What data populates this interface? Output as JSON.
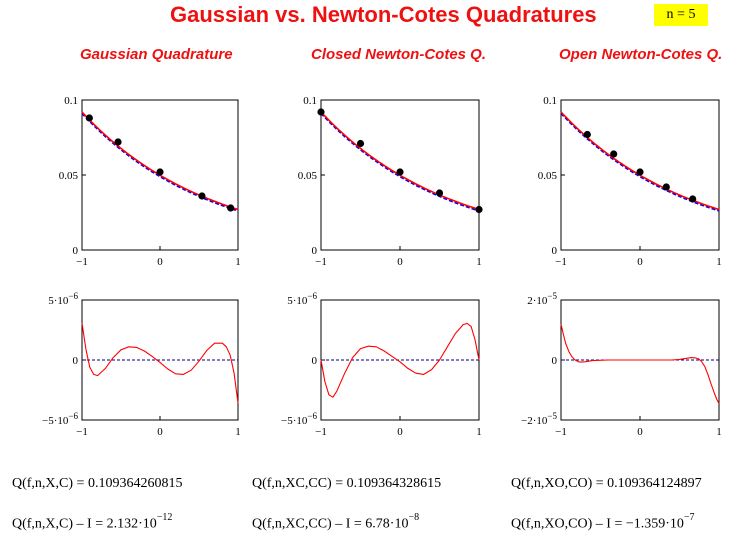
{
  "title": "Gaussian vs. Newton-Cotes Quadratures",
  "n_label": "n = 5",
  "columns": [
    {
      "subtitle": "Gaussian Quadrature",
      "value_line": {
        "lhs": "Q(f,n,X,C)",
        "rhs": "= 0.109364260815"
      },
      "error_line": {
        "lhs": "Q(f,n,X,C) – I",
        "mant": "= 2.132·10",
        "exp": "−12"
      }
    },
    {
      "subtitle": "Closed Newton-Cotes Q.",
      "value_line": {
        "lhs": "Q(f,n,XC,CC)",
        "rhs": "= 0.109364328615"
      },
      "error_line": {
        "lhs": "Q(f,n,XC,CC) – I",
        "mant": "= 6.78·10",
        "exp": "−8"
      }
    },
    {
      "subtitle": "Open Newton-Cotes Q.",
      "value_line": {
        "lhs": "Q(f,n,XO,CO)",
        "rhs": "= 0.109364124897"
      },
      "error_line": {
        "lhs": "Q(f,n,XO,CO) – I",
        "mant": "= −1.359·10",
        "exp": "−7"
      }
    }
  ],
  "colors": {
    "title": "#ee1111",
    "curve_red": "#ff0000",
    "curve_blue": "#0000ff",
    "nodes": "#000000",
    "zero_line": "#000080"
  },
  "chart_data": [
    {
      "type": "line",
      "panel": "gauss-function",
      "xlim": [
        -1,
        1
      ],
      "ylim": [
        0,
        0.1
      ],
      "xticks": [
        -1,
        0,
        1
      ],
      "yticks": [
        0,
        0.05,
        0.1
      ],
      "xtick_labels": [
        "−1",
        "0",
        "1"
      ],
      "ytick_labels": [
        "0",
        "0.05",
        "0.1"
      ],
      "function": {
        "kind": "exp_fit",
        "y_at_minus1": 0.092,
        "y_at_plus1": 0.027
      },
      "nodes": {
        "x": [
          -0.906,
          -0.538,
          0,
          0.538,
          0.906
        ],
        "y": [
          0.088,
          0.072,
          0.052,
          0.036,
          0.028
        ]
      }
    },
    {
      "type": "line",
      "panel": "closed-nc-function",
      "xlim": [
        -1,
        1
      ],
      "ylim": [
        0,
        0.1
      ],
      "xticks": [
        -1,
        0,
        1
      ],
      "yticks": [
        0,
        0.05,
        0.1
      ],
      "xtick_labels": [
        "−1",
        "0",
        "1"
      ],
      "ytick_labels": [
        "0",
        "0.05",
        "0.1"
      ],
      "function": {
        "kind": "exp_fit",
        "y_at_minus1": 0.092,
        "y_at_plus1": 0.027
      },
      "nodes": {
        "x": [
          -1,
          -0.5,
          0,
          0.5,
          1
        ],
        "y": [
          0.092,
          0.071,
          0.052,
          0.038,
          0.027
        ]
      }
    },
    {
      "type": "line",
      "panel": "open-nc-function",
      "xlim": [
        -1,
        1
      ],
      "ylim": [
        0,
        0.1
      ],
      "xticks": [
        -1,
        0,
        1
      ],
      "yticks": [
        0,
        0.05,
        0.1
      ],
      "xtick_labels": [
        "−1",
        "0",
        "1"
      ],
      "ytick_labels": [
        "0",
        "0.05",
        "0.1"
      ],
      "function": {
        "kind": "exp_fit",
        "y_at_minus1": 0.092,
        "y_at_plus1": 0.027
      },
      "nodes": {
        "x": [
          -0.667,
          -0.333,
          0,
          0.333,
          0.667
        ],
        "y": [
          0.077,
          0.064,
          0.052,
          0.042,
          0.034
        ]
      }
    },
    {
      "type": "line",
      "panel": "gauss-error",
      "xlim": [
        -1,
        1
      ],
      "ylim": [
        -5e-06,
        5e-06
      ],
      "xticks": [
        -1,
        0,
        1
      ],
      "xtick_labels": [
        "−1",
        "0",
        "1"
      ],
      "yticks": [
        -5e-06,
        0,
        5e-06
      ],
      "ytick_labels": [
        {
          "m": "−5·10",
          "e": "−6"
        },
        {
          "m": "0",
          "e": ""
        },
        {
          "m": "5·10",
          "e": "−6"
        }
      ],
      "zero_line": true,
      "error_curve": {
        "x": [
          -1,
          -0.95,
          -0.9,
          -0.85,
          -0.8,
          -0.7,
          -0.6,
          -0.5,
          -0.4,
          -0.3,
          -0.2,
          -0.1,
          0,
          0.1,
          0.2,
          0.3,
          0.4,
          0.5,
          0.6,
          0.7,
          0.8,
          0.85,
          0.9,
          0.95,
          1
        ],
        "y": [
          3.1e-06,
          9e-07,
          -6e-07,
          -1.2e-06,
          -1.3e-06,
          -7e-07,
          2e-07,
          8.5e-07,
          1.1e-06,
          1.05e-06,
          7.5e-07,
          3e-07,
          -2e-07,
          -7.5e-07,
          -1.15e-06,
          -1.2e-06,
          -8.5e-07,
          -1e-07,
          8e-07,
          1.4e-06,
          1.4e-06,
          1.1e-06,
          4e-07,
          -1.1e-06,
          -3.6e-06
        ]
      }
    },
    {
      "type": "line",
      "panel": "closed-nc-error",
      "xlim": [
        -1,
        1
      ],
      "ylim": [
        -5e-06,
        5e-06
      ],
      "xticks": [
        -1,
        0,
        1
      ],
      "xtick_labels": [
        "−1",
        "0",
        "1"
      ],
      "yticks": [
        -5e-06,
        0,
        5e-06
      ],
      "ytick_labels": [
        {
          "m": "−5·10",
          "e": "−6"
        },
        {
          "m": "0",
          "e": ""
        },
        {
          "m": "5·10",
          "e": "−6"
        }
      ],
      "zero_line": true,
      "error_curve": {
        "x": [
          -1,
          -0.95,
          -0.9,
          -0.85,
          -0.8,
          -0.7,
          -0.6,
          -0.5,
          -0.4,
          -0.3,
          -0.2,
          -0.1,
          0,
          0.1,
          0.2,
          0.3,
          0.4,
          0.5,
          0.6,
          0.7,
          0.8,
          0.85,
          0.9,
          0.95,
          1
        ],
        "y": [
          0,
          -1.8e-06,
          -2.9e-06,
          -3.1e-06,
          -2.6e-06,
          -1.1e-06,
          2e-07,
          9.5e-07,
          1.15e-06,
          1.1e-06,
          7.5e-07,
          3e-07,
          -1.5e-07,
          -7e-07,
          -1.1e-06,
          -1.2e-06,
          -8e-07,
          0,
          1.1e-06,
          2.2e-06,
          2.95e-06,
          3.05e-06,
          2.8e-06,
          1.7e-06,
          0
        ]
      }
    },
    {
      "type": "line",
      "panel": "open-nc-error",
      "xlim": [
        -1,
        1
      ],
      "ylim": [
        -2e-05,
        2e-05
      ],
      "xticks": [
        -1,
        0,
        1
      ],
      "xtick_labels": [
        "−1",
        "0",
        "1"
      ],
      "yticks": [
        -2e-05,
        0,
        2e-05
      ],
      "ytick_labels": [
        {
          "m": "−2·10",
          "e": "−5"
        },
        {
          "m": "0",
          "e": ""
        },
        {
          "m": "2·10",
          "e": "−5"
        }
      ],
      "zero_line": true,
      "error_curve": {
        "x": [
          -1,
          -0.97,
          -0.94,
          -0.9,
          -0.86,
          -0.82,
          -0.78,
          -0.74,
          -0.7,
          -0.6,
          -0.4,
          -0.2,
          0,
          0.2,
          0.4,
          0.5,
          0.6,
          0.65,
          0.7,
          0.74,
          0.78,
          0.82,
          0.86,
          0.9,
          0.94,
          0.97,
          1
        ],
        "y": [
          1.2e-05,
          8.5e-06,
          5.5e-06,
          2.8e-06,
          1e-06,
          0,
          -6e-07,
          -7e-07,
          -6e-07,
          -2e-07,
          0,
          0,
          0,
          0,
          0,
          2e-07,
          6e-07,
          8e-07,
          7e-07,
          4e-07,
          -5e-07,
          -2.2e-06,
          -4.8e-06,
          -8e-06,
          -1.1e-05,
          -1.3e-05,
          -1.45e-05
        ]
      }
    }
  ]
}
